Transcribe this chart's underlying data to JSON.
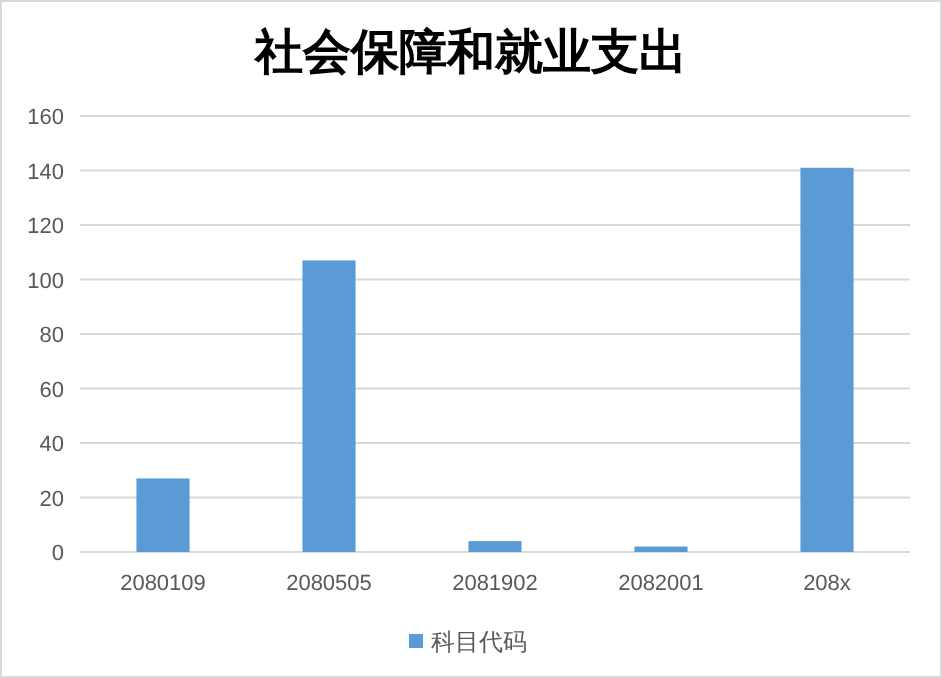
{
  "chart_data": {
    "type": "bar",
    "title": "社会保障和就业支出",
    "categories": [
      "2080109",
      "2080505",
      "2081902",
      "2082001",
      "208x"
    ],
    "series": [
      {
        "name": "科目代码",
        "color": "#5b9bd5",
        "values": [
          27,
          107,
          4,
          2,
          141
        ]
      }
    ],
    "ylim": [
      0,
      160
    ],
    "yticks": [
      0,
      20,
      40,
      60,
      80,
      100,
      120,
      140,
      160
    ],
    "grid": "y",
    "legend": "bottom"
  }
}
